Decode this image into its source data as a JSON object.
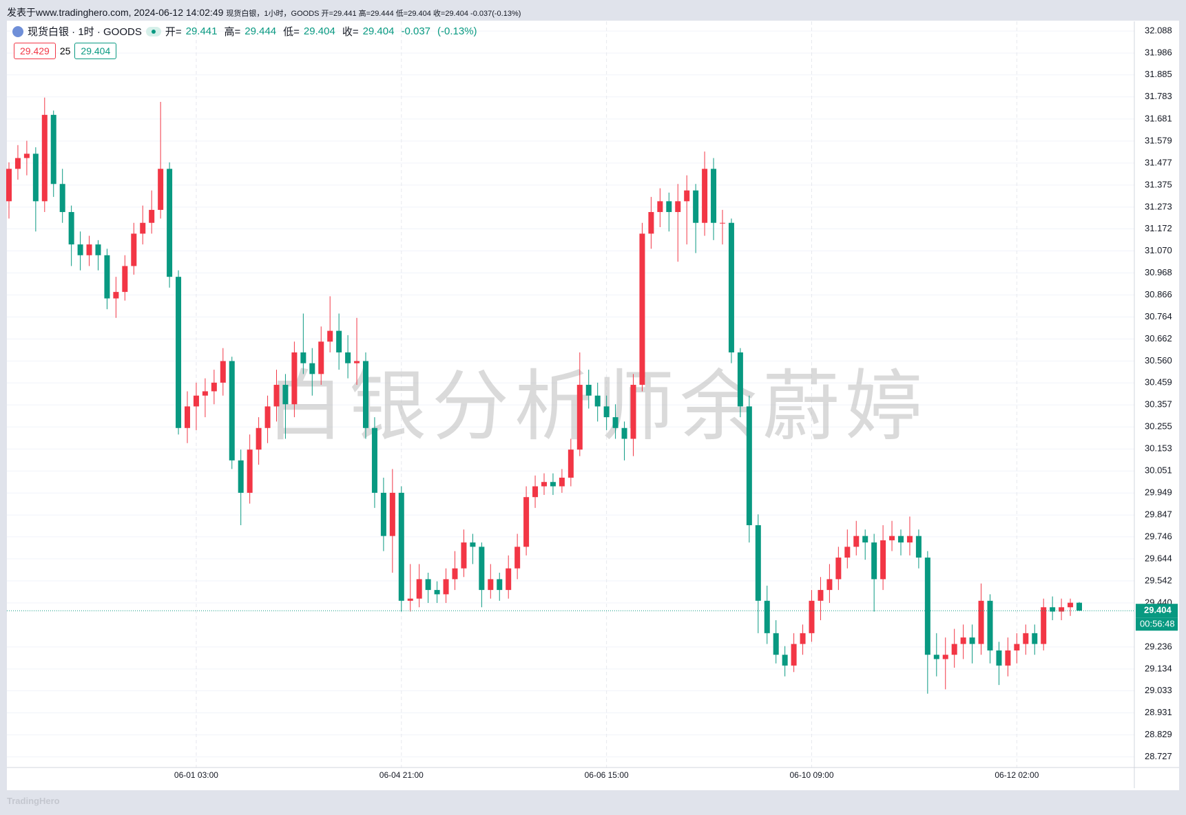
{
  "banner": "发表于www.tradinghero.com, 2024-06-12 14:02:49",
  "banner_detail": "现货白银，1小时，GOODS 开=29.441 高=29.444 低=29.404 收=29.404 -0.037(-0.13%)",
  "footer": "TradingHero",
  "watermark": "白银分析师余蔚婷",
  "chart_data": {
    "type": "candlestick",
    "legend": {
      "symbol": "现货白银 · 1时 · GOODS",
      "labels": [
        "开=",
        "高=",
        "低=",
        "收="
      ],
      "change": -0.037,
      "change_percent": "(-0.13%)"
    },
    "quote": {
      "bid": 29.429,
      "spread": 25,
      "ask": 29.404
    },
    "countdown": "00:56:48",
    "up_color": "#f23645",
    "down_color": "#089981",
    "ylim": [
      28.678,
      32.133
    ],
    "yticks": [
      32.088,
      31.986,
      31.885,
      31.783,
      31.681,
      31.579,
      31.477,
      31.375,
      31.273,
      31.172,
      {
        "value": 31.07,
        "label": "31.070"
      },
      30.968,
      30.866,
      30.764,
      30.662,
      {
        "value": 30.56,
        "label": "30.560"
      },
      30.459,
      30.357,
      30.255,
      30.153,
      30.051,
      29.949,
      29.847,
      29.746,
      29.644,
      29.542,
      {
        "value": 29.44,
        "label": "29.440"
      },
      29.236,
      29.134,
      29.033,
      28.931,
      28.829,
      28.727
    ],
    "grid": true,
    "categories": [
      null,
      null,
      null,
      null,
      null,
      null,
      null,
      null,
      null,
      null,
      null,
      null,
      null,
      null,
      null,
      null,
      null,
      null,
      null,
      null,
      null,
      "06-01 03:00",
      null,
      null,
      null,
      null,
      null,
      null,
      null,
      null,
      null,
      null,
      null,
      null,
      null,
      null,
      null,
      null,
      null,
      null,
      null,
      null,
      null,
      null,
      "06-04 21:00",
      null,
      null,
      null,
      null,
      null,
      null,
      null,
      null,
      null,
      null,
      null,
      null,
      null,
      null,
      null,
      null,
      null,
      null,
      null,
      null,
      null,
      null,
      "06-06 15:00",
      null,
      null,
      null,
      null,
      null,
      null,
      null,
      null,
      null,
      null,
      null,
      null,
      null,
      null,
      null,
      null,
      null,
      null,
      null,
      null,
      null,
      null,
      "06-10 09:00",
      null,
      null,
      null,
      null,
      null,
      null,
      null,
      null,
      null,
      null,
      null,
      null,
      null,
      null,
      null,
      null,
      null,
      null,
      null,
      null,
      null,
      null,
      "06-12 02:00",
      null,
      null,
      null,
      null,
      null,
      null,
      null
    ],
    "ohlc": [
      [
        31.3,
        31.48,
        31.22,
        31.45
      ],
      [
        31.45,
        31.56,
        31.4,
        31.5
      ],
      [
        31.5,
        31.58,
        31.42,
        31.52
      ],
      [
        31.52,
        31.55,
        31.16,
        31.3
      ],
      [
        31.3,
        31.78,
        31.25,
        31.7
      ],
      [
        31.7,
        31.72,
        31.32,
        31.38
      ],
      [
        31.38,
        31.45,
        31.2,
        31.25
      ],
      [
        31.25,
        31.28,
        31.0,
        31.1
      ],
      [
        31.1,
        31.16,
        30.98,
        31.05
      ],
      [
        31.05,
        31.14,
        31.0,
        31.1
      ],
      [
        31.1,
        31.12,
        30.98,
        31.05
      ],
      [
        31.05,
        31.08,
        30.8,
        30.85
      ],
      [
        30.85,
        30.95,
        30.76,
        30.88
      ],
      [
        30.88,
        31.05,
        30.84,
        31.0
      ],
      [
        31.0,
        31.2,
        30.96,
        31.15
      ],
      [
        31.15,
        31.28,
        31.1,
        31.2
      ],
      [
        31.2,
        31.35,
        31.15,
        31.26
      ],
      [
        31.26,
        31.76,
        31.22,
        31.45
      ],
      [
        31.45,
        31.48,
        30.9,
        30.95
      ],
      [
        30.95,
        30.98,
        30.22,
        30.25
      ],
      [
        30.25,
        30.42,
        30.18,
        30.35
      ],
      [
        30.35,
        30.46,
        30.24,
        30.4
      ],
      [
        30.4,
        30.48,
        30.3,
        30.42
      ],
      [
        30.42,
        30.52,
        30.36,
        30.46
      ],
      [
        30.46,
        30.62,
        30.4,
        30.56
      ],
      [
        30.56,
        30.58,
        30.06,
        30.1
      ],
      [
        30.1,
        30.15,
        29.8,
        29.95
      ],
      [
        29.95,
        30.22,
        29.9,
        30.15
      ],
      [
        30.15,
        30.3,
        30.08,
        30.25
      ],
      [
        30.25,
        30.4,
        30.18,
        30.35
      ],
      [
        30.35,
        30.52,
        30.28,
        30.45
      ],
      [
        30.45,
        30.5,
        30.2,
        30.36
      ],
      [
        30.36,
        30.65,
        30.3,
        30.6
      ],
      [
        30.6,
        30.78,
        30.5,
        30.55
      ],
      [
        30.55,
        30.62,
        30.4,
        30.5
      ],
      [
        30.5,
        30.72,
        30.45,
        30.65
      ],
      [
        30.65,
        30.86,
        30.6,
        30.7
      ],
      [
        30.7,
        30.78,
        30.52,
        30.6
      ],
      [
        30.6,
        30.68,
        30.48,
        30.55
      ],
      [
        30.55,
        30.76,
        30.45,
        30.56
      ],
      [
        30.56,
        30.6,
        30.2,
        30.25
      ],
      [
        30.25,
        30.3,
        29.88,
        29.95
      ],
      [
        29.95,
        30.02,
        29.68,
        29.75
      ],
      [
        29.75,
        30.06,
        29.58,
        29.95
      ],
      [
        29.95,
        29.98,
        29.4,
        29.45
      ],
      [
        29.45,
        29.62,
        29.4,
        29.46
      ],
      [
        29.46,
        29.62,
        29.42,
        29.55
      ],
      [
        29.55,
        29.58,
        29.44,
        29.5
      ],
      [
        29.5,
        29.54,
        29.44,
        29.48
      ],
      [
        29.48,
        29.6,
        29.44,
        29.55
      ],
      [
        29.55,
        29.68,
        29.5,
        29.6
      ],
      [
        29.6,
        29.78,
        29.56,
        29.72
      ],
      [
        29.72,
        29.76,
        29.62,
        29.7
      ],
      [
        29.7,
        29.72,
        29.42,
        29.5
      ],
      [
        29.5,
        29.62,
        29.46,
        29.55
      ],
      [
        29.55,
        29.58,
        29.45,
        29.5
      ],
      [
        29.5,
        29.66,
        29.46,
        29.6
      ],
      [
        29.6,
        29.76,
        29.55,
        29.7
      ],
      [
        29.7,
        29.98,
        29.66,
        29.93
      ],
      [
        29.93,
        30.03,
        29.88,
        29.98
      ],
      [
        29.98,
        30.04,
        29.94,
        30.0
      ],
      [
        30.0,
        30.04,
        29.94,
        29.98
      ],
      [
        29.98,
        30.06,
        29.95,
        30.02
      ],
      [
        30.02,
        30.2,
        29.98,
        30.15
      ],
      [
        30.15,
        30.6,
        30.12,
        30.45
      ],
      [
        30.45,
        30.52,
        30.34,
        30.4
      ],
      [
        30.4,
        30.46,
        30.28,
        30.35
      ],
      [
        30.35,
        30.4,
        30.24,
        30.3
      ],
      [
        30.3,
        30.36,
        30.2,
        30.25
      ],
      [
        30.25,
        30.28,
        30.1,
        30.2
      ],
      [
        30.2,
        30.5,
        30.12,
        30.45
      ],
      [
        30.45,
        31.2,
        30.42,
        31.15
      ],
      [
        31.15,
        31.32,
        31.08,
        31.25
      ],
      [
        31.25,
        31.36,
        31.18,
        31.3
      ],
      [
        31.3,
        31.34,
        31.16,
        31.25
      ],
      [
        31.25,
        31.38,
        31.02,
        31.3
      ],
      [
        31.3,
        31.42,
        31.1,
        31.35
      ],
      [
        31.35,
        31.38,
        31.06,
        31.2
      ],
      [
        31.2,
        31.53,
        31.14,
        31.45
      ],
      [
        31.45,
        31.5,
        31.12,
        31.2
      ],
      [
        31.2,
        31.26,
        31.1,
        31.2
      ],
      [
        31.2,
        31.22,
        30.55,
        30.6
      ],
      [
        30.6,
        30.62,
        30.3,
        30.35
      ],
      [
        30.35,
        30.4,
        29.72,
        29.8
      ],
      [
        29.8,
        29.85,
        29.3,
        29.45
      ],
      [
        29.45,
        29.52,
        29.25,
        29.3
      ],
      [
        29.3,
        29.36,
        29.16,
        29.2
      ],
      [
        29.2,
        29.24,
        29.1,
        29.15
      ],
      [
        29.15,
        29.3,
        29.12,
        29.25
      ],
      [
        29.25,
        29.34,
        29.2,
        29.3
      ],
      [
        29.3,
        29.5,
        29.26,
        29.45
      ],
      [
        29.45,
        29.56,
        29.36,
        29.5
      ],
      [
        29.5,
        29.62,
        29.44,
        29.55
      ],
      [
        29.55,
        29.7,
        29.5,
        29.65
      ],
      [
        29.65,
        29.78,
        29.6,
        29.7
      ],
      [
        29.7,
        29.82,
        29.66,
        29.75
      ],
      [
        29.75,
        29.78,
        29.64,
        29.72
      ],
      [
        29.72,
        29.76,
        29.4,
        29.55
      ],
      [
        29.55,
        29.8,
        29.5,
        29.73
      ],
      [
        29.73,
        29.82,
        29.68,
        29.75
      ],
      [
        29.75,
        29.78,
        29.66,
        29.72
      ],
      [
        29.72,
        29.84,
        29.66,
        29.75
      ],
      [
        29.75,
        29.78,
        29.6,
        29.65
      ],
      [
        29.65,
        29.68,
        29.02,
        29.2
      ],
      [
        29.2,
        29.3,
        29.1,
        29.18
      ],
      [
        29.18,
        29.28,
        29.04,
        29.2
      ],
      [
        29.2,
        29.32,
        29.14,
        29.25
      ],
      [
        29.25,
        29.34,
        29.18,
        29.28
      ],
      [
        29.28,
        29.34,
        29.16,
        29.25
      ],
      [
        29.25,
        29.53,
        29.2,
        29.45
      ],
      [
        29.45,
        29.48,
        29.16,
        29.22
      ],
      [
        29.22,
        29.26,
        29.06,
        29.15
      ],
      [
        29.15,
        29.28,
        29.1,
        29.22
      ],
      [
        29.22,
        29.3,
        29.16,
        29.25
      ],
      [
        29.25,
        29.34,
        29.2,
        29.3
      ],
      [
        29.3,
        29.34,
        29.2,
        29.25
      ],
      [
        29.25,
        29.46,
        29.22,
        29.42
      ],
      [
        29.42,
        29.47,
        29.36,
        29.4
      ],
      [
        29.4,
        29.46,
        29.36,
        29.42
      ],
      [
        29.42,
        29.46,
        29.38,
        29.441
      ],
      [
        29.441,
        29.444,
        29.404,
        29.404
      ]
    ]
  }
}
